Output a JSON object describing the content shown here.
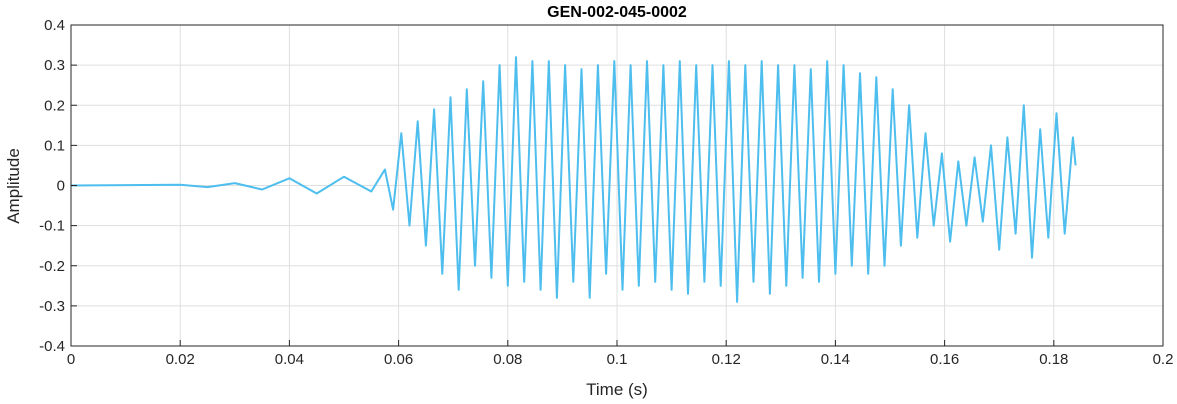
{
  "chart_data": {
    "type": "line",
    "title": "GEN-002-045-0002",
    "xlabel": "Time (s)",
    "ylabel": "Amplitude",
    "xlim": [
      0,
      0.2
    ],
    "ylim": [
      -0.4,
      0.4
    ],
    "x_ticks": [
      "0",
      "0.02",
      "0.04",
      "0.06",
      "0.08",
      "0.1",
      "0.12",
      "0.14",
      "0.16",
      "0.18",
      "0.2"
    ],
    "y_ticks": [
      "0.4",
      "0.3",
      "0.2",
      "0.1",
      "0",
      "-0.1",
      "-0.2",
      "-0.3",
      "-0.4"
    ],
    "grid": true,
    "series": [
      {
        "color": "#4DBEEE",
        "x": [
          0,
          0.02,
          0.025,
          0.03,
          0.035,
          0.04,
          0.045,
          0.05,
          0.055,
          0.0575,
          0.059,
          0.0605,
          0.062,
          0.0635,
          0.065,
          0.0665,
          0.068,
          0.0695,
          0.071,
          0.0725,
          0.074,
          0.0755,
          0.077,
          0.0785,
          0.08,
          0.0815,
          0.083,
          0.0845,
          0.086,
          0.0875,
          0.089,
          0.0905,
          0.092,
          0.0935,
          0.095,
          0.0965,
          0.098,
          0.0995,
          0.101,
          0.1025,
          0.104,
          0.1055,
          0.107,
          0.1085,
          0.11,
          0.1115,
          0.113,
          0.1145,
          0.116,
          0.1175,
          0.119,
          0.1205,
          0.122,
          0.1235,
          0.125,
          0.1265,
          0.128,
          0.1295,
          0.131,
          0.1325,
          0.134,
          0.1355,
          0.137,
          0.1385,
          0.14,
          0.1415,
          0.143,
          0.1445,
          0.146,
          0.1475,
          0.149,
          0.1505,
          0.152,
          0.1535,
          0.155,
          0.1565,
          0.158,
          0.1595,
          0.161,
          0.1625,
          0.164,
          0.1655,
          0.167,
          0.1685,
          0.17,
          0.1715,
          0.173,
          0.1745,
          0.176,
          0.1775,
          0.179,
          0.1805,
          0.182,
          0.1835,
          0.184
        ],
        "y": [
          0,
          0.002,
          -0.004,
          0.006,
          -0.01,
          0.018,
          -0.02,
          0.022,
          -0.015,
          0.04,
          -0.06,
          0.13,
          -0.1,
          0.16,
          -0.15,
          0.19,
          -0.22,
          0.22,
          -0.26,
          0.24,
          -0.2,
          0.26,
          -0.23,
          0.3,
          -0.25,
          0.32,
          -0.24,
          0.31,
          -0.26,
          0.31,
          -0.28,
          0.3,
          -0.24,
          0.29,
          -0.28,
          0.3,
          -0.22,
          0.31,
          -0.26,
          0.3,
          -0.25,
          0.31,
          -0.24,
          0.3,
          -0.26,
          0.31,
          -0.27,
          0.3,
          -0.24,
          0.3,
          -0.25,
          0.31,
          -0.29,
          0.3,
          -0.24,
          0.31,
          -0.27,
          0.3,
          -0.25,
          0.3,
          -0.23,
          0.29,
          -0.24,
          0.31,
          -0.22,
          0.3,
          -0.2,
          0.28,
          -0.22,
          0.27,
          -0.2,
          0.24,
          -0.15,
          0.2,
          -0.13,
          0.13,
          -0.1,
          0.08,
          -0.14,
          0.06,
          -0.1,
          0.07,
          -0.09,
          0.1,
          -0.16,
          0.12,
          -0.12,
          0.2,
          -0.18,
          0.14,
          -0.13,
          0.18,
          -0.12,
          0.12,
          0.05
        ]
      }
    ]
  }
}
